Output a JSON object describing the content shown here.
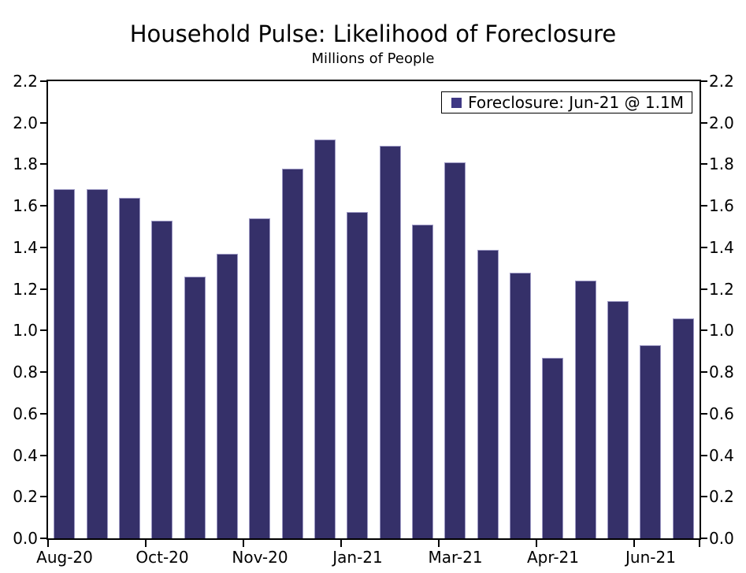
{
  "chart": {
    "title": "Household Pulse: Likelihood of Foreclosure",
    "subtitle": "Millions of People",
    "legend": {
      "label": "Foreclosure: Jun-21 @ 1.1M",
      "swatch_color": "#3e3884"
    },
    "colors": {
      "bar_fill": "#353069",
      "bar_border": "#9d99c4",
      "axis": "#000000",
      "background": "#ffffff"
    }
  },
  "chart_data": {
    "type": "bar",
    "title": "Household Pulse: Likelihood of Foreclosure",
    "subtitle": "Millions of People",
    "unit": "Millions of People",
    "values": [
      1.68,
      1.68,
      1.64,
      1.53,
      1.26,
      1.37,
      1.54,
      1.78,
      1.92,
      1.57,
      1.89,
      1.51,
      1.81,
      1.39,
      1.28,
      0.87,
      1.24,
      1.14,
      0.93,
      1.06
    ],
    "series_name": "Foreclosure",
    "last_point_label": "Jun-21 @ 1.1M",
    "x_tick_labels": [
      "Aug-20",
      "Oct-20",
      "Nov-20",
      "Jan-21",
      "Mar-21",
      "Apr-21",
      "Jun-21"
    ],
    "x_label_bar_indices": [
      0,
      3,
      6,
      9,
      12,
      15,
      18
    ],
    "x_boundary_ticks_every": 3,
    "y_tick_labels": [
      "0.0",
      "0.2",
      "0.4",
      "0.6",
      "0.8",
      "1.0",
      "1.2",
      "1.4",
      "1.6",
      "1.8",
      "2.0",
      "2.2"
    ],
    "ylim": [
      0.0,
      2.2
    ],
    "y_step": 0.2,
    "grid": false,
    "legend_position": "top-right",
    "y_axis_sides": [
      "left",
      "right"
    ]
  }
}
